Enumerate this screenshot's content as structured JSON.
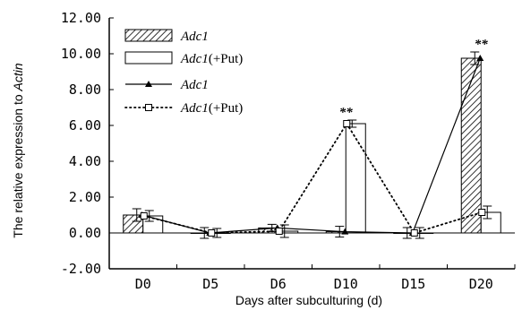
{
  "chart_data": {
    "type": "bar",
    "categories": [
      "D0",
      "D5",
      "D6",
      "D10",
      "D15",
      "D20"
    ],
    "ylabel": "The relative expression to Actin",
    "ylabel_prefix": "The relative expression to ",
    "ylabel_italic": "Actin",
    "xlabel": "Days after subculturing (d)",
    "ylim": [
      -2,
      12
    ],
    "yticks": [
      "-2.00",
      "0.00",
      "2.00",
      "4.00",
      "6.00",
      "8.00",
      "10.00",
      "12.00"
    ],
    "grid": false,
    "legend_position": "top-left",
    "series": [
      {
        "name": "Adc1",
        "style": "hatched-bar",
        "values": [
          1.0,
          0.0,
          0.28,
          0.07,
          0.0,
          9.75
        ],
        "errors": [
          0.35,
          0.3,
          0.2,
          0.3,
          0.3,
          0.35
        ]
      },
      {
        "name": "Adc1(+Put)",
        "style": "open-bar",
        "values": [
          0.95,
          0.0,
          0.1,
          6.1,
          0.0,
          1.15
        ],
        "errors": [
          0.3,
          0.25,
          0.35,
          0.2,
          0.3,
          0.35
        ]
      },
      {
        "name": "Adc1",
        "style": "solid-line-triangle",
        "values": [
          1.0,
          0.0,
          0.28,
          0.07,
          0.0,
          9.75
        ]
      },
      {
        "name": "Adc1(+Put)",
        "style": "dotted-line-square",
        "values": [
          0.95,
          0.0,
          0.1,
          6.1,
          0.0,
          1.15
        ]
      }
    ],
    "legend": [
      {
        "main": "Adc1",
        "suffix": ""
      },
      {
        "main": "Adc1",
        "suffix": "(+Put)"
      },
      {
        "main": "Adc1",
        "suffix": ""
      },
      {
        "main": "Adc1",
        "suffix": "(+Put)"
      }
    ],
    "annotations": [
      {
        "category": "D10",
        "text": "**"
      },
      {
        "category": "D20",
        "text": "**"
      }
    ]
  }
}
